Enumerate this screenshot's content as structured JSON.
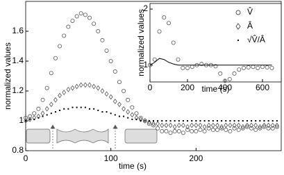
{
  "chart_data": [
    {
      "type": "scatter",
      "xlabel": "time (s)",
      "ylabel": "normalized values",
      "xlim": [
        0,
        300
      ],
      "ylim": [
        0.8,
        1.8
      ],
      "xticks": [
        0,
        100,
        200
      ],
      "yticks": [
        0.8,
        1,
        1.2,
        1.4,
        1.6
      ],
      "x": [
        0,
        5,
        10,
        15,
        20,
        25,
        30,
        35,
        40,
        45,
        50,
        55,
        60,
        65,
        70,
        75,
        80,
        85,
        90,
        95,
        100,
        105,
        110,
        115,
        120,
        125,
        130,
        135,
        140,
        145,
        150,
        155,
        160,
        165,
        170,
        175,
        180,
        185,
        190,
        195,
        200,
        205,
        210,
        215,
        220,
        225,
        230,
        235,
        240,
        245,
        250,
        255,
        260,
        265,
        270,
        275,
        280,
        285,
        290,
        295
      ],
      "series": [
        {
          "name": "V̂",
          "marker": "circle",
          "color": "#555555",
          "values": [
            1.02,
            1.03,
            1.05,
            1.08,
            1.14,
            1.22,
            1.32,
            1.42,
            1.5,
            1.57,
            1.63,
            1.67,
            1.7,
            1.72,
            1.71,
            1.69,
            1.65,
            1.6,
            1.54,
            1.47,
            1.4,
            1.33,
            1.26,
            1.2,
            1.14,
            1.09,
            1.05,
            1.02,
            1.0,
            0.98,
            0.97,
            0.95,
            0.93,
            0.93,
            0.92,
            0.93,
            0.93,
            0.92,
            0.94,
            0.93,
            0.93,
            0.94,
            0.93,
            0.95,
            0.94,
            0.94,
            0.95,
            0.94,
            0.93,
            0.95,
            0.94,
            0.95,
            0.96,
            0.95,
            0.94,
            0.95,
            0.96,
            0.95,
            0.95,
            0.96
          ]
        },
        {
          "name": "Â",
          "marker": "diamond",
          "color": "#555555",
          "values": [
            1.0,
            1.01,
            1.02,
            1.03,
            1.05,
            1.08,
            1.11,
            1.14,
            1.17,
            1.19,
            1.21,
            1.22,
            1.23,
            1.24,
            1.24,
            1.24,
            1.23,
            1.22,
            1.2,
            1.18,
            1.16,
            1.13,
            1.11,
            1.08,
            1.06,
            1.04,
            1.02,
            1.01,
            1.0,
            0.99,
            0.98,
            0.98,
            0.97,
            0.97,
            0.97,
            0.96,
            0.97,
            0.97,
            0.96,
            0.97,
            0.97,
            0.97,
            0.96,
            0.97,
            0.97,
            0.97,
            0.96,
            0.97,
            0.97,
            0.97,
            0.97,
            0.96,
            0.97,
            0.97,
            0.97,
            0.96,
            0.97,
            0.97,
            0.97,
            0.97
          ]
        },
        {
          "name": "√V̂/Â",
          "marker": "dot",
          "color": "#000000",
          "values": [
            1.0,
            1.01,
            1.01,
            1.02,
            1.03,
            1.04,
            1.05,
            1.06,
            1.07,
            1.08,
            1.08,
            1.09,
            1.09,
            1.09,
            1.09,
            1.08,
            1.08,
            1.07,
            1.06,
            1.06,
            1.05,
            1.04,
            1.03,
            1.03,
            1.02,
            1.01,
            1.01,
            1.0,
            1.0,
            1.0,
            1.0,
            1.0,
            1.0,
            1.0,
            1.0,
            1.0,
            1.0,
            1.0,
            1.0,
            1.0,
            1.0,
            1.0,
            1.0,
            1.0,
            1.0,
            1.0,
            1.0,
            1.0,
            1.0,
            1.0,
            1.0,
            1.0,
            1.0,
            1.0,
            1.0,
            1.0,
            1.0,
            1.0,
            1.0,
            1.0
          ]
        }
      ]
    },
    {
      "type": "scatter",
      "xlabel": "time (s)",
      "ylabel": "normalized values",
      "xlim": [
        0,
        700
      ],
      "ylim": [
        0.7,
        2.1
      ],
      "xticks": [
        0,
        200,
        400,
        600
      ],
      "yticks": [
        1,
        2
      ],
      "x": [
        0,
        25,
        50,
        75,
        100,
        125,
        150,
        175,
        200,
        225,
        250,
        275,
        300,
        325,
        350,
        375,
        400,
        425,
        450,
        475,
        500,
        525,
        550,
        575,
        600,
        625,
        650
      ],
      "series": [
        {
          "marker": "circle",
          "color": "#555555",
          "values": [
            1.0,
            1.1,
            1.6,
            1.85,
            1.75,
            1.4,
            1.1,
            0.95,
            0.95,
            0.97,
            1.0,
            1.02,
            1.0,
            1.0,
            0.98,
            0.85,
            0.72,
            0.75,
            0.85,
            0.92,
            0.95,
            0.96,
            0.97,
            0.95,
            0.97,
            0.96,
            0.95
          ]
        },
        {
          "marker": "line",
          "color": "#000000",
          "values": [
            1.0,
            1.05,
            1.12,
            1.1,
            1.05,
            1.02,
            1.0,
            1.0,
            1.0,
            1.0,
            1.0,
            1.0,
            1.0,
            1.0,
            1.0,
            1.0,
            1.0,
            1.0,
            1.0,
            1.0,
            1.0,
            1.0,
            1.0,
            1.0,
            1.0,
            1.0,
            1.0
          ]
        }
      ]
    }
  ]
}
